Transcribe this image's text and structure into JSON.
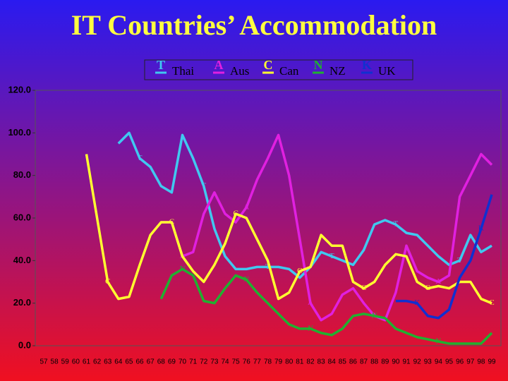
{
  "chart_data": {
    "type": "line",
    "title": "IT Countries’ Accommodation",
    "categories": [
      "57",
      "58",
      "59",
      "60",
      "61",
      "62",
      "63",
      "64",
      "65",
      "66",
      "67",
      "68",
      "69",
      "70",
      "71",
      "72",
      "73",
      "74",
      "75",
      "76",
      "77",
      "78",
      "79",
      "80",
      "81",
      "82",
      "83",
      "84",
      "85",
      "86",
      "87",
      "88",
      "89",
      "90",
      "91",
      "92",
      "93",
      "94",
      "95",
      "96",
      "97",
      "98",
      "99"
    ],
    "ylim": [
      0,
      120
    ],
    "yticks": [
      {
        "value": 0,
        "label": "0.0"
      },
      {
        "value": 20,
        "label": "20.0"
      },
      {
        "value": 40,
        "label": "40.0"
      },
      {
        "value": 60,
        "label": "60.0"
      },
      {
        "value": 80,
        "label": "80.0"
      },
      {
        "value": 100,
        "label": "100.0"
      },
      {
        "value": 120,
        "label": "120.0"
      }
    ],
    "series": [
      {
        "name": "Thai",
        "marker": "T",
        "color": "#40c8f0",
        "values": [
          null,
          null,
          null,
          null,
          null,
          null,
          null,
          95,
          100,
          88,
          84,
          75,
          72,
          99,
          88,
          75,
          55,
          42,
          36,
          36,
          37,
          37,
          37,
          36,
          32,
          37,
          44,
          42,
          40,
          38,
          45,
          57,
          59,
          57,
          53,
          52,
          47,
          42,
          38,
          40,
          52,
          44,
          47
        ]
      },
      {
        "name": "Aus",
        "marker": "A",
        "color": "#e020e0",
        "values": [
          null,
          null,
          null,
          null,
          null,
          null,
          null,
          null,
          null,
          null,
          null,
          58,
          58,
          42,
          44,
          62,
          72,
          62,
          58,
          65,
          78,
          88,
          99,
          80,
          50,
          20,
          12,
          15,
          24,
          27,
          20,
          14,
          12,
          25,
          47,
          35,
          32,
          30,
          33,
          70,
          80,
          90,
          85
        ]
      },
      {
        "name": "Can",
        "marker": "C",
        "color": "#ffff30",
        "values": [
          null,
          null,
          null,
          null,
          90,
          60,
          30,
          22,
          23,
          38,
          52,
          58,
          58,
          42,
          35,
          30,
          38,
          48,
          62,
          60,
          50,
          40,
          22,
          25,
          35,
          37,
          52,
          47,
          47,
          30,
          27,
          30,
          38,
          43,
          42,
          30,
          27,
          28,
          27,
          30,
          30,
          22,
          20
        ]
      },
      {
        "name": "NZ",
        "marker": "N",
        "color": "#20b030",
        "values": [
          null,
          null,
          null,
          null,
          null,
          null,
          null,
          null,
          null,
          null,
          null,
          22,
          33,
          36,
          33,
          21,
          20,
          27,
          33,
          31,
          25,
          20,
          15,
          10,
          8,
          8,
          6,
          5,
          8,
          14,
          15,
          14,
          13,
          8,
          6,
          4,
          3,
          2,
          1,
          1,
          1,
          1,
          6
        ]
      },
      {
        "name": "UK",
        "marker": "K",
        "color": "#1030d0",
        "values": [
          null,
          null,
          null,
          null,
          null,
          null,
          null,
          null,
          null,
          null,
          null,
          null,
          null,
          null,
          null,
          null,
          null,
          null,
          null,
          null,
          null,
          null,
          null,
          null,
          null,
          null,
          null,
          null,
          null,
          null,
          null,
          null,
          null,
          21,
          21,
          20,
          14,
          13,
          17,
          32,
          40,
          55,
          71
        ]
      }
    ]
  }
}
